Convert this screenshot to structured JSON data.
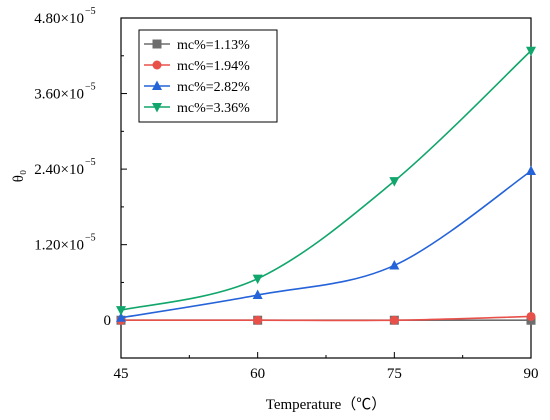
{
  "chart_data": {
    "type": "line",
    "xlabel": "Temperature（℃）",
    "ylabel": "θ₀",
    "x": [
      45,
      60,
      75,
      90
    ],
    "xlim": [
      45,
      90
    ],
    "xticks": [
      45,
      60,
      75,
      90
    ],
    "ylim": [
      -6e-06,
      4.8e-05
    ],
    "yticks": [
      0,
      1.2e-05,
      2.4e-05,
      3.6e-05,
      4.8e-05
    ],
    "ytick_labels": {
      "mantissa": [
        "0",
        "1.20×10",
        "2.40×10",
        "3.60×10",
        "4.80×10"
      ],
      "exponent": [
        "",
        "−5",
        "−5",
        "−5",
        "−5"
      ]
    },
    "grid": false,
    "legend_position": "top-left",
    "series": [
      {
        "name": "mc%=1.13%",
        "color": "#6d6d6d",
        "marker": "square",
        "values": [
          0,
          0,
          0,
          0
        ]
      },
      {
        "name": "mc%=1.94%",
        "color": "#e8504a",
        "marker": "circle",
        "values": [
          0,
          0,
          0,
          6e-07
        ]
      },
      {
        "name": "mc%=2.82%",
        "color": "#2563d9",
        "marker": "triangle-up",
        "values": [
          4e-07,
          4e-06,
          8.7e-06,
          2.37e-05
        ]
      },
      {
        "name": "mc%=3.36%",
        "color": "#11a66b",
        "marker": "triangle-down",
        "values": [
          1.6e-06,
          6.6e-06,
          2.21e-05,
          4.28e-05
        ]
      }
    ]
  }
}
